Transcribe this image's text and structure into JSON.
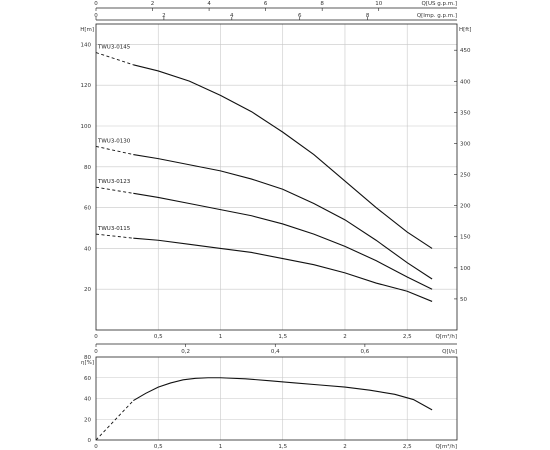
{
  "chart_data": [
    {
      "type": "line",
      "title": "",
      "xlabel": "Q[m³/h]",
      "ylabel": "H[m]",
      "ylabel_right": "H[ft]",
      "xlim": [
        0,
        2.9
      ],
      "ylim": [
        0,
        150
      ],
      "x_ticks": [
        "0",
        "0,5",
        "1",
        "1,5",
        "2",
        "2,5"
      ],
      "x_tick_values": [
        0,
        0.5,
        1,
        1.5,
        2,
        2.5
      ],
      "y_ticks": [
        "20",
        "40",
        "60",
        "80",
        "100",
        "120",
        "140"
      ],
      "y_tick_values": [
        20,
        40,
        60,
        80,
        100,
        120,
        140
      ],
      "right_ticks": [
        "50",
        "100",
        "150",
        "200",
        "250",
        "300",
        "350",
        "400",
        "450"
      ],
      "right_tick_values_m": [
        15.24,
        30.48,
        45.72,
        60.96,
        76.2,
        91.44,
        106.68,
        121.92,
        137.16
      ],
      "top_axis_1": {
        "label": "Q[US g.p.m.]",
        "ticks": [
          "0",
          "2",
          "4",
          "6",
          "8",
          "10"
        ],
        "tick_values_m3h": [
          0,
          0.4542,
          0.9085,
          1.3627,
          1.8169,
          2.2712
        ]
      },
      "top_axis_2": {
        "label": "Q[Imp. g.p.m.]",
        "ticks": [
          "0",
          "2",
          "4",
          "6",
          "8"
        ],
        "tick_values_m3h": [
          0,
          0.5455,
          1.091,
          1.6366,
          2.1821
        ]
      },
      "bottom_axis_2": {
        "label": "Q[l/s]",
        "ticks": [
          "0",
          "0,2",
          "0,4",
          "0,6"
        ],
        "tick_values_m3h": [
          0,
          0.72,
          1.44,
          2.16
        ]
      },
      "grid": true,
      "series": [
        {
          "name": "TWU3-0145",
          "x": [
            0.3,
            0.5,
            0.75,
            1.0,
            1.25,
            1.5,
            1.75,
            2.0,
            2.25,
            2.5,
            2.7
          ],
          "y": [
            130,
            127,
            122,
            115,
            107,
            97,
            86,
            73,
            60,
            48,
            40
          ],
          "dashed": {
            "x": [
              0,
              0.3
            ],
            "y": [
              136,
              130
            ]
          }
        },
        {
          "name": "TWU3-0130",
          "x": [
            0.3,
            0.5,
            0.75,
            1.0,
            1.25,
            1.5,
            1.75,
            2.0,
            2.25,
            2.5,
            2.7
          ],
          "y": [
            86,
            84,
            81,
            78,
            74,
            69,
            62,
            54,
            44,
            33,
            25
          ],
          "dashed": {
            "x": [
              0,
              0.3
            ],
            "y": [
              90,
              86
            ]
          }
        },
        {
          "name": "TWU3-0123",
          "x": [
            0.3,
            0.5,
            0.75,
            1.0,
            1.25,
            1.5,
            1.75,
            2.0,
            2.25,
            2.5,
            2.7
          ],
          "y": [
            67,
            65,
            62,
            59,
            56,
            52,
            47,
            41,
            34,
            26,
            20
          ],
          "dashed": {
            "x": [
              0,
              0.3
            ],
            "y": [
              70,
              67
            ]
          }
        },
        {
          "name": "TWU3-0115",
          "x": [
            0.3,
            0.5,
            0.75,
            1.0,
            1.25,
            1.5,
            1.75,
            2.0,
            2.25,
            2.5,
            2.7
          ],
          "y": [
            45,
            44,
            42,
            40,
            38,
            35,
            32,
            28,
            23,
            19,
            14
          ],
          "dashed": {
            "x": [
              0,
              0.3
            ],
            "y": [
              47,
              45
            ]
          }
        }
      ]
    },
    {
      "type": "line",
      "title": "",
      "xlabel": "Q[m³/h]",
      "ylabel": "η[%]",
      "xlim": [
        0,
        2.9
      ],
      "ylim": [
        0,
        80
      ],
      "x_ticks": [
        "0",
        "0,5",
        "1",
        "1,5",
        "2",
        "2,5"
      ],
      "x_tick_values": [
        0,
        0.5,
        1,
        1.5,
        2,
        2.5
      ],
      "y_ticks": [
        "0",
        "20",
        "40",
        "60",
        "80"
      ],
      "y_tick_values": [
        0,
        20,
        40,
        60,
        80
      ],
      "grid": true,
      "series": [
        {
          "x": [
            0.3,
            0.4,
            0.5,
            0.6,
            0.7,
            0.8,
            0.9,
            1.0,
            1.2,
            1.4,
            1.6,
            1.8,
            2.0,
            2.2,
            2.4,
            2.55,
            2.7
          ],
          "y": [
            38,
            45,
            51,
            55,
            58,
            59.5,
            60,
            60,
            59,
            57,
            55,
            53,
            51,
            48,
            44,
            39,
            29
          ],
          "dashed": {
            "x": [
              0,
              0.3
            ],
            "y": [
              0,
              38
            ]
          }
        }
      ]
    }
  ]
}
